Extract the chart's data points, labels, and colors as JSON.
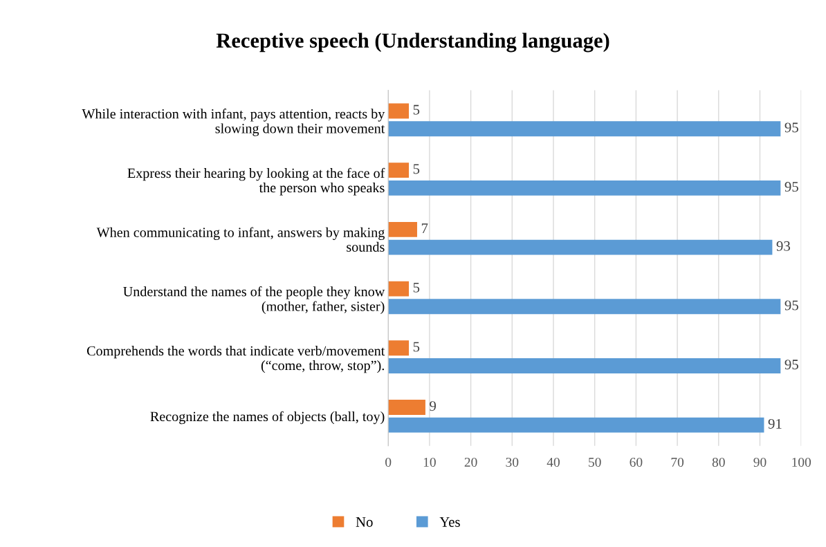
{
  "chart_data": {
    "type": "bar",
    "orientation": "horizontal",
    "title": "Receptive speech (Understanding language)",
    "categories": [
      "While interaction with infant, pays attention, reacts by\nslowing down their movement",
      "Express their hearing by looking at the face of\nthe person who speaks",
      "When communicating to infant, answers by making\nsounds",
      "Understand the names of the people they know\n(mother, father, sister)",
      "Comprehends the words that indicate verb/movement\n(“come, throw, stop”).",
      "Recognize the names of objects (ball, toy)"
    ],
    "series": [
      {
        "name": "No",
        "color": "#ed7d31",
        "values": [
          5,
          5,
          7,
          5,
          5,
          9
        ]
      },
      {
        "name": "Yes",
        "color": "#5b9bd5",
        "values": [
          95,
          95,
          93,
          95,
          95,
          91
        ]
      }
    ],
    "xlim": [
      0,
      100
    ],
    "xticks": [
      0,
      10,
      20,
      30,
      40,
      50,
      60,
      70,
      80,
      90,
      100
    ],
    "grid": "x",
    "legend": "bottom",
    "data_labels": true
  }
}
